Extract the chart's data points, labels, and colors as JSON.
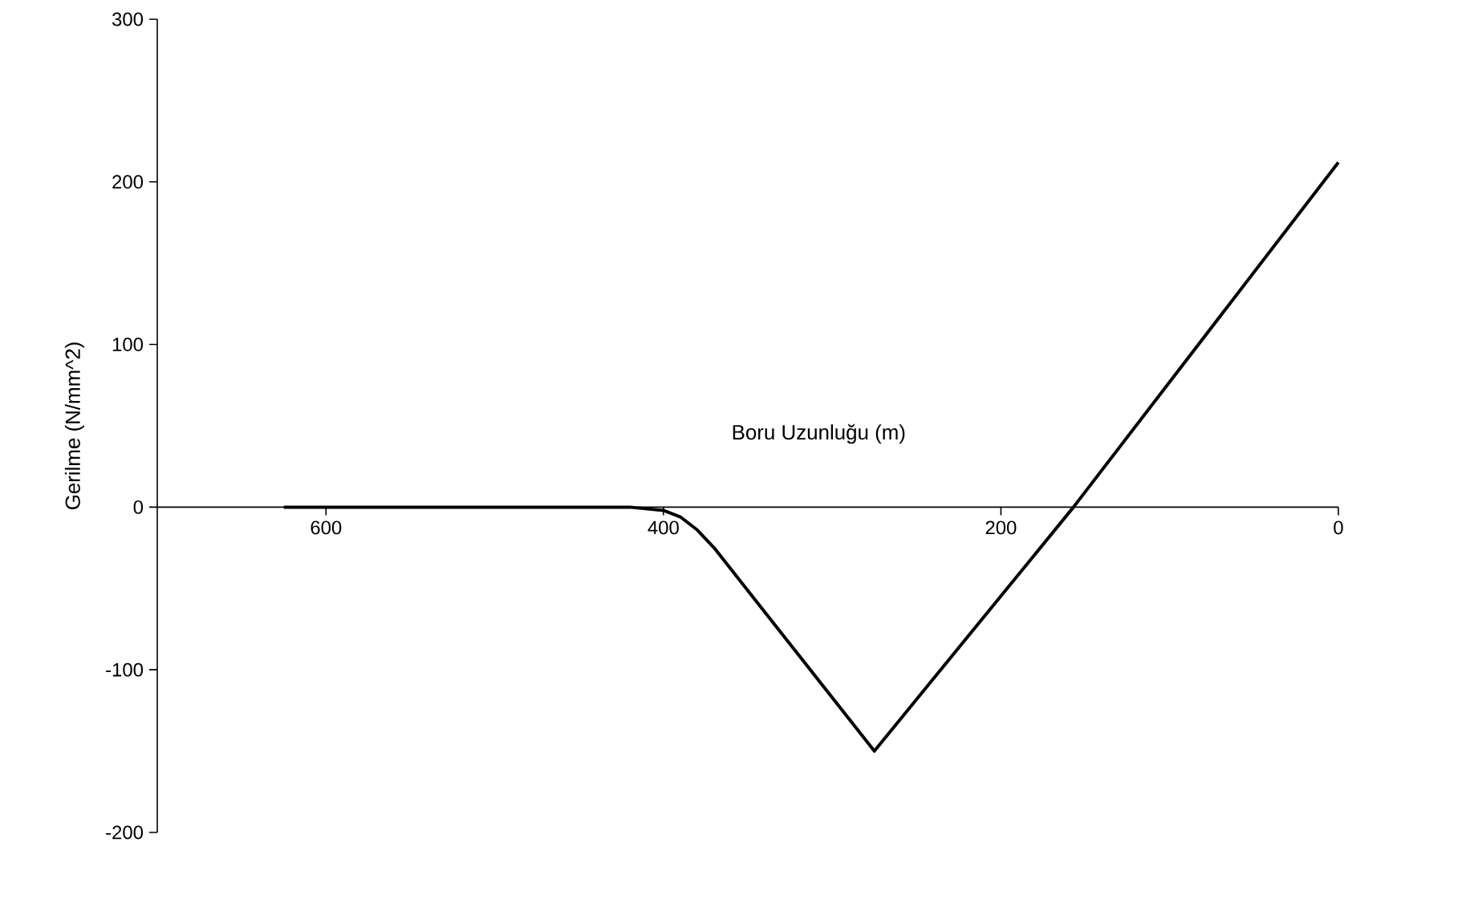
{
  "chart_data": {
    "type": "line",
    "xlabel": "Boru Uzunluğu (m)",
    "ylabel": "Gerilme (N/mm^2)",
    "x": [
      625,
      500,
      420,
      400,
      390,
      380,
      370,
      275,
      157,
      0
    ],
    "series": [
      {
        "color": "#000000",
        "values": [
          0,
          0,
          0,
          -2,
          -6,
          -14,
          -25,
          -150,
          0,
          212
        ]
      }
    ],
    "xlim": [
      700,
      0
    ],
    "ylim": [
      -200,
      300
    ],
    "xticks": [
      600,
      400,
      200,
      0
    ],
    "yticks": [
      -200,
      -100,
      0,
      100,
      200,
      300
    ],
    "grid": false,
    "marker": "none",
    "line_style": "solid"
  }
}
